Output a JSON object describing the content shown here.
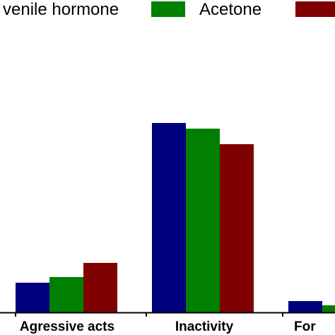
{
  "chart_data": {
    "type": "bar",
    "title": "",
    "xlabel": "",
    "ylabel": "",
    "categories": [
      "Agressive acts",
      "Inactivity",
      "For"
    ],
    "series": [
      {
        "name": "venile hormone",
        "color": "#00007f",
        "values": [
          42,
          268,
          16
        ]
      },
      {
        "name": "Acetone",
        "color": "#007f00",
        "values": [
          50,
          260,
          10
        ]
      },
      {
        "name": "",
        "color": "#7f0000",
        "values": [
          70,
          238,
          null
        ]
      }
    ],
    "ylim": [
      0,
      300
    ],
    "grid": false,
    "legend_position": "top"
  }
}
